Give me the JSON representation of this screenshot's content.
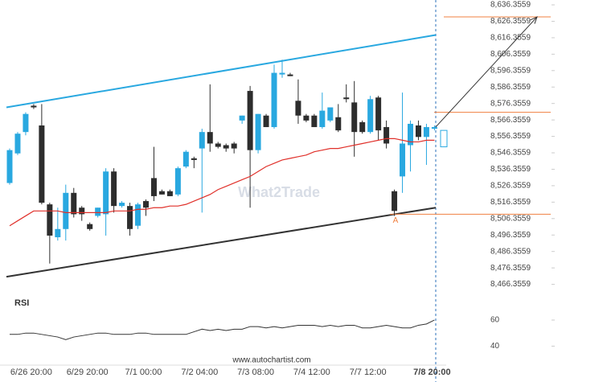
{
  "chart_data": {
    "type": "candlestick",
    "watermark": "What2Trade",
    "footer": "www.autochartist.com",
    "x": [
      null,
      null,
      null,
      "6/26 20:00",
      null,
      null,
      null,
      null,
      null,
      null,
      "6/29 20:00",
      null,
      null,
      null,
      null,
      null,
      null,
      "7/1 00:00",
      null,
      null,
      null,
      null,
      null,
      null,
      "7/2 04:00",
      null,
      null,
      null,
      null,
      null,
      null,
      "7/3 08:00",
      null,
      null,
      null,
      null,
      null,
      null,
      "7/4 12:00",
      null,
      null,
      null,
      null,
      null,
      null,
      "7/7 12:00",
      null,
      null,
      null,
      null,
      null,
      null,
      null,
      "7/8 20:00"
    ],
    "open": [
      8528,
      8546,
      8559,
      8575,
      8563,
      8515,
      8495,
      8500,
      8522,
      8513,
      8503,
      8508,
      8509,
      8535,
      8514,
      8514,
      8502,
      8517,
      8531,
      8523,
      8523,
      8521,
      8538,
      8543,
      8549,
      8559,
      8552,
      8551,
      8552,
      8566,
      8584,
      8548,
      8569,
      8562,
      8594,
      8594,
      8578,
      8569,
      8569,
      8562,
      8566,
      8568,
      8580,
      8577,
      8565,
      8559,
      8580,
      8562,
      8523,
      8532,
      8551,
      8563,
      8556,
      8561
    ],
    "high": [
      8549,
      8559,
      8571,
      8576,
      8576,
      8516,
      8513,
      8527,
      8525,
      8514,
      8504,
      8513,
      8537,
      8537,
      8517,
      8516,
      8516,
      8518,
      8550,
      8524,
      8524,
      8538,
      8548,
      8544,
      8561,
      8588,
      8553,
      8552,
      8553,
      8569,
      8587,
      8570,
      8570,
      8600,
      8603,
      8595,
      8591,
      8570,
      8570,
      8583,
      8574,
      8576,
      8588,
      8590,
      8566,
      8581,
      8581,
      8566,
      8524,
      8583,
      8566,
      8566,
      8564,
      8563
    ],
    "low": [
      8527,
      8545,
      8557,
      8573,
      8515,
      8479,
      8493,
      8493,
      8507,
      8505,
      8499,
      8507,
      8496,
      8510,
      8513,
      8496,
      8500,
      8508,
      8517,
      8521,
      8520,
      8520,
      8537,
      8537,
      8510,
      8547,
      8549,
      8547,
      8546,
      8564,
      8513,
      8546,
      8562,
      8561,
      8592,
      8593,
      8564,
      8565,
      8562,
      8561,
      8565,
      8559,
      8577,
      8544,
      8558,
      8558,
      8554,
      8549,
      8508,
      8522,
      8535,
      8554,
      8539,
      8560
    ],
    "close": [
      8548,
      8558,
      8570,
      8574,
      8516,
      8496,
      8500,
      8522,
      8509,
      8509,
      8500,
      8513,
      8535,
      8514,
      8516,
      8500,
      8515,
      8513,
      8520,
      8521,
      8520,
      8537,
      8547,
      8542,
      8559,
      8552,
      8550,
      8549,
      8549,
      8569,
      8548,
      8570,
      8562,
      8595,
      8595,
      8593,
      8569,
      8566,
      8562,
      8572,
      8574,
      8560,
      8579,
      8559,
      8559,
      8579,
      8560,
      8552,
      8511,
      8552,
      8564,
      8556,
      8562,
      8562
    ],
    "up_color": "#29a8e0",
    "down_color": "#2d2d2d",
    "moving_average": {
      "color": "#e0302a",
      "values": [
        8502,
        8505,
        8508,
        8511,
        8511,
        8511,
        8511,
        8510,
        8510,
        8510,
        8510,
        8510,
        8510,
        8511,
        8511,
        8511,
        8512,
        8512,
        8513,
        8513,
        8514,
        8514,
        8515,
        8517,
        8519,
        8521,
        8524,
        8526,
        8528,
        8530,
        8532,
        8535,
        8538,
        8540,
        8542,
        8543,
        8544,
        8545,
        8547,
        8548,
        8549,
        8549,
        8550,
        8551,
        8552,
        8553,
        8554,
        8555,
        8555,
        8554,
        8553,
        8553,
        8554,
        8554
      ]
    },
    "upper_channel": {
      "start": 8574,
      "end": 8618,
      "color": "#29a8e0"
    },
    "lower_channel": {
      "start": 8471,
      "end": 8513,
      "color": "#333333"
    },
    "levels": [
      8629,
      8571,
      8509
    ],
    "level_color": "#f08040",
    "pattern_point_label": "A",
    "arrow": {
      "start": 8561,
      "end": 8629
    },
    "forecast_range": [
      8550,
      8560
    ],
    "ylim": [
      8459.3,
      8639.3
    ],
    "yticks": [
      {
        "value": 8636.3559,
        "label": "8,636.3559"
      },
      {
        "value": 8626.3559,
        "label": "8,626.3559"
      },
      {
        "value": 8616.3559,
        "label": "8,616.3559"
      },
      {
        "value": 8606.3559,
        "label": "8,606.3559"
      },
      {
        "value": 8596.3559,
        "label": "8,596.3559"
      },
      {
        "value": 8586.3559,
        "label": "8,586.3559"
      },
      {
        "value": 8576.3559,
        "label": "8,576.3559"
      },
      {
        "value": 8566.3559,
        "label": "8,566.3559"
      },
      {
        "value": 8556.3559,
        "label": "8,556.3559"
      },
      {
        "value": 8546.3559,
        "label": "8,546.3559"
      },
      {
        "value": 8536.3559,
        "label": "8,536.3559"
      },
      {
        "value": 8526.3559,
        "label": "8,526.3559"
      },
      {
        "value": 8516.3559,
        "label": "8,516.3559"
      },
      {
        "value": 8506.3559,
        "label": "8,506.3559"
      },
      {
        "value": 8496.3559,
        "label": "8,496.3559"
      },
      {
        "value": 8486.3559,
        "label": "8,486.3559"
      },
      {
        "value": 8476.3559,
        "label": "8,476.3559"
      },
      {
        "value": 8466.3559,
        "label": "8,466.3559"
      }
    ],
    "grid": false,
    "rsi": {
      "label": "RSI",
      "color": "#333333",
      "ylim": [
        31,
        68
      ],
      "yticks": [
        60,
        40
      ],
      "values": [
        49,
        49,
        50,
        50,
        49,
        48,
        47,
        45,
        47,
        48,
        49,
        50,
        50,
        49,
        49,
        49,
        50,
        50,
        49,
        49,
        49,
        49,
        49,
        51,
        53,
        52,
        53,
        52,
        53,
        53,
        55,
        55,
        54,
        55,
        54,
        55,
        56,
        56,
        56,
        55,
        56,
        55,
        56,
        56,
        54,
        54,
        55,
        56,
        55,
        54,
        54,
        56,
        57,
        60
      ]
    }
  }
}
